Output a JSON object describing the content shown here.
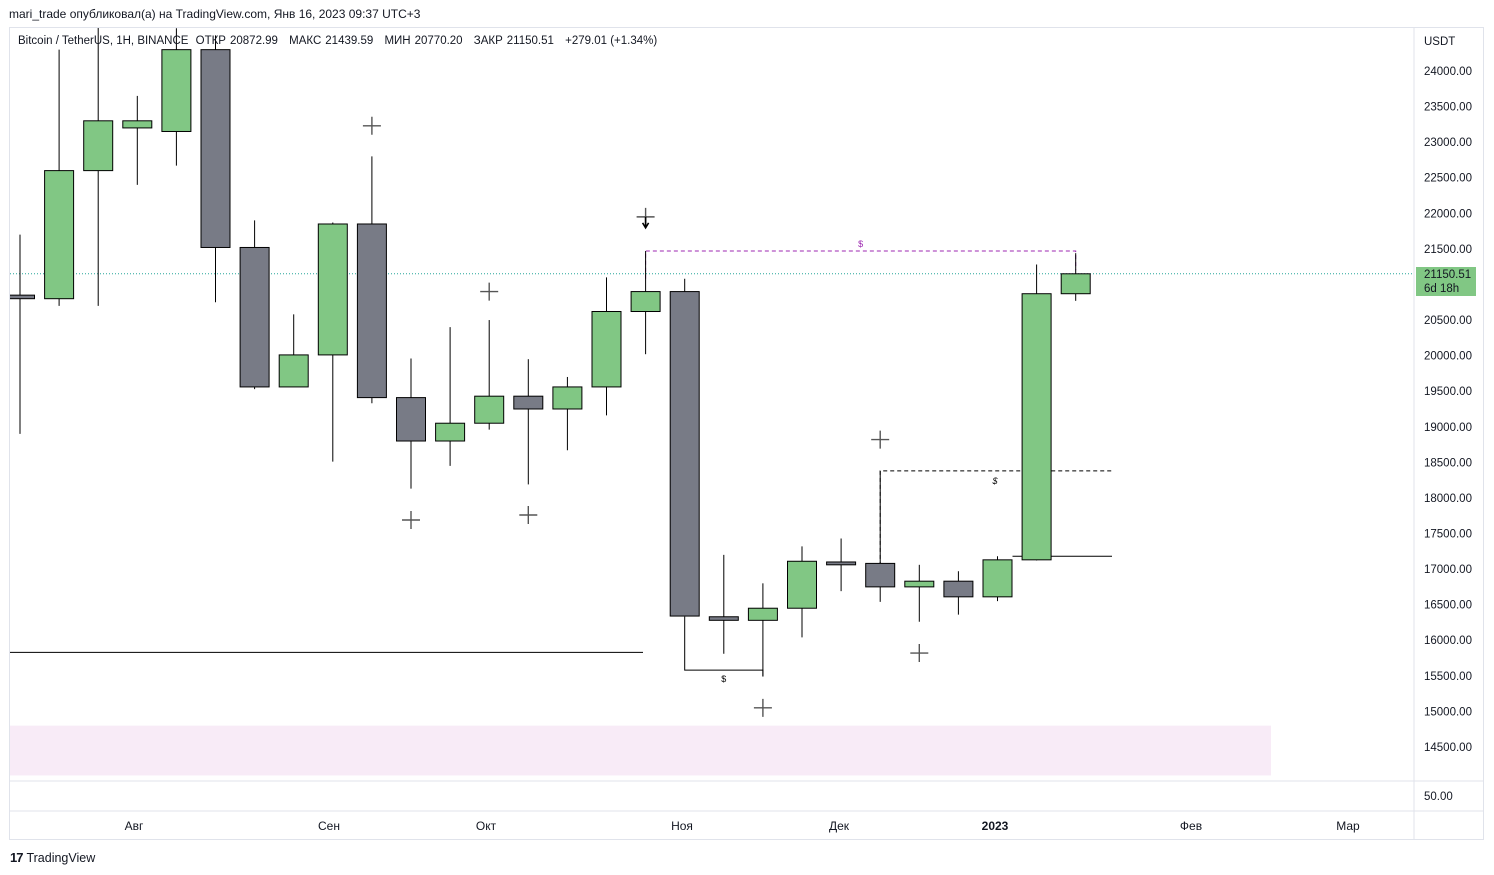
{
  "header": {
    "publisher_line": "mari_trade опубликовал(а) на TradingView.com, Янв 16, 2023 09:37 UTC+3"
  },
  "legend": {
    "symbol": "Bitcoin / TetherUS, 1H, BINANCE",
    "open_label": "ОТКР",
    "open": "20872.99",
    "high_label": "МАКС",
    "high": "21439.59",
    "low_label": "МИН",
    "low": "20770.20",
    "close_label": "ЗАКР",
    "close": "21150.51",
    "change": "+279.01 (+1.34%)"
  },
  "price_badge": {
    "price": "21150.51",
    "countdown": "6d 18h"
  },
  "footer": {
    "brand_mark": "17",
    "brand": "TradingView"
  },
  "colors": {
    "up": "#81c784",
    "down": "#787b86",
    "border": "#000000",
    "zone": "#f8ebf7",
    "dashed_magenta": "#9c27b0"
  },
  "chart_data": {
    "type": "candlestick",
    "currency": "USDT",
    "y_ticks": [
      24000,
      23500,
      23000,
      22500,
      22000,
      21500,
      21000,
      20500,
      20000,
      19500,
      19000,
      18500,
      18000,
      17500,
      17000,
      16500,
      16000,
      15500,
      15000,
      14500
    ],
    "y_tick_labels": [
      "24000.00",
      "23500.00",
      "23000.00",
      "22500.00",
      "22000.00",
      "21500.00",
      "21000.00",
      "20500.00",
      "20000.00",
      "19500.00",
      "19000.00",
      "18500.00",
      "18000.00",
      "17500.00",
      "17000.00",
      "16500.00",
      "16000.00",
      "15500.00",
      "15000.00",
      "14500.00"
    ],
    "volume_label": "50.00",
    "x_labels": [
      "Авг",
      "Сен",
      "Окт",
      "Ноя",
      "Дек",
      "2023",
      "Фев",
      "Мар"
    ],
    "candles": [
      {
        "o": 20850,
        "h": 21700,
        "l": 18900,
        "c": 20800
      },
      {
        "o": 20800,
        "h": 24300,
        "l": 20700,
        "c": 22600
      },
      {
        "o": 22600,
        "h": 25200,
        "l": 20700,
        "c": 23300
      },
      {
        "o": 23200,
        "h": 23650,
        "l": 22400,
        "c": 23300
      },
      {
        "o": 23150,
        "h": 24600,
        "l": 22670,
        "c": 24300
      },
      {
        "o": 24300,
        "h": 24500,
        "l": 20750,
        "c": 21520
      },
      {
        "o": 21520,
        "h": 21900,
        "l": 19530,
        "c": 19560
      },
      {
        "o": 19560,
        "h": 20580,
        "l": 19560,
        "c": 20010
      },
      {
        "o": 20010,
        "h": 21870,
        "l": 18510,
        "c": 21850
      },
      {
        "o": 21850,
        "h": 22800,
        "l": 19330,
        "c": 19410
      },
      {
        "o": 19410,
        "h": 19960,
        "l": 18130,
        "c": 18800
      },
      {
        "o": 18800,
        "h": 20400,
        "l": 18450,
        "c": 19050
      },
      {
        "o": 19050,
        "h": 20500,
        "l": 18960,
        "c": 19430
      },
      {
        "o": 19430,
        "h": 19950,
        "l": 18190,
        "c": 19250
      },
      {
        "o": 19250,
        "h": 19700,
        "l": 18670,
        "c": 19560
      },
      {
        "o": 19560,
        "h": 21100,
        "l": 19160,
        "c": 20620
      },
      {
        "o": 20620,
        "h": 21470,
        "l": 20020,
        "c": 20900
      },
      {
        "o": 20900,
        "h": 21080,
        "l": 16330,
        "c": 16340
      },
      {
        "o": 16330,
        "h": 17200,
        "l": 15810,
        "c": 16280
      },
      {
        "o": 16280,
        "h": 16800,
        "l": 15490,
        "c": 16450
      },
      {
        "o": 16450,
        "h": 17320,
        "l": 16040,
        "c": 17110
      },
      {
        "o": 17100,
        "h": 17430,
        "l": 16690,
        "c": 17060
      },
      {
        "o": 17080,
        "h": 18380,
        "l": 16540,
        "c": 16750
      },
      {
        "o": 16750,
        "h": 17060,
        "l": 16260,
        "c": 16830
      },
      {
        "o": 16830,
        "h": 16970,
        "l": 16360,
        "c": 16610
      },
      {
        "o": 16610,
        "h": 17180,
        "l": 16550,
        "c": 17130
      },
      {
        "o": 17130,
        "h": 21280,
        "l": 17120,
        "c": 20870
      },
      {
        "o": 20870,
        "h": 21440,
        "l": 20770,
        "c": 21150
      }
    ],
    "current_price": 21150.51,
    "annotations": {
      "cross_marks": [
        {
          "candle": 9,
          "price": 23230
        },
        {
          "candle": 12,
          "price": 20900
        },
        {
          "candle": 10,
          "price": 17690
        },
        {
          "candle": 13,
          "price": 17760
        },
        {
          "candle": 16,
          "price": 21950
        },
        {
          "candle": 22,
          "price": 18820
        },
        {
          "candle": 23,
          "price": 15820
        },
        {
          "candle": 19,
          "price": 15050
        }
      ],
      "level_low_line": 15830,
      "dashed_high": {
        "price": 21470,
        "from_candle": 16,
        "to_candle": 27,
        "label": "$"
      },
      "dashed_mid": {
        "price": 18380,
        "from_candle": 22,
        "to_candle": 28,
        "label": "$"
      },
      "bracket_low": {
        "price": 15580,
        "from_candle": 17,
        "to_candle": 19,
        "label": "$"
      },
      "level_mid_line": 17180,
      "zone": {
        "from": 14800,
        "to": 14100
      }
    }
  }
}
